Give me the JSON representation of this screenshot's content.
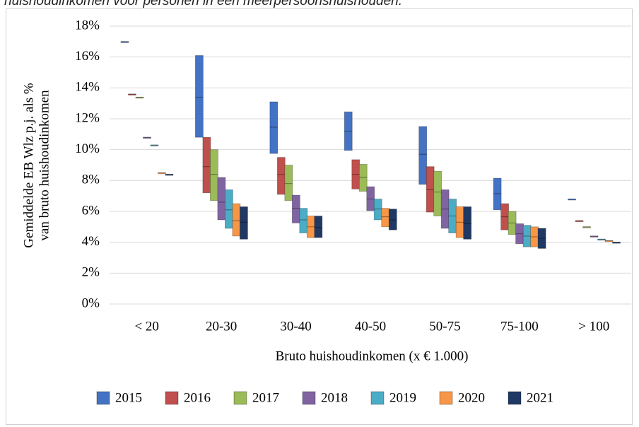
{
  "caption": "huishoudinkomen voor personen in een meerpersoonshuishouden.",
  "chart_data": {
    "type": "range",
    "ylabel": [
      "Gemiddelde EB Wlz p.j. als %",
      "van bruto huishoudinkomen"
    ],
    "xlabel": "Bruto huishoudinkomen (x € 1.000)",
    "categories": [
      "< 20",
      "20-30",
      "30-40",
      "40-50",
      "50-75",
      "75-100",
      "> 100"
    ],
    "ylim": [
      0,
      18
    ],
    "yticks": [
      {
        "value": 0,
        "label": "0%"
      },
      {
        "value": 2,
        "label": "2%"
      },
      {
        "value": 4,
        "label": "4%"
      },
      {
        "value": 6,
        "label": "6%"
      },
      {
        "value": 8,
        "label": "8%"
      },
      {
        "value": 10,
        "label": "10%"
      },
      {
        "value": 12,
        "label": "12%"
      },
      {
        "value": 14,
        "label": "14%"
      },
      {
        "value": 16,
        "label": "16%"
      },
      {
        "value": 18,
        "label": "18%"
      }
    ],
    "grid": true,
    "legend": "bottom",
    "series": [
      {
        "name": "2015",
        "color": "#4472c4",
        "low": [
          17.0,
          10.8,
          9.75,
          9.95,
          7.75,
          6.1,
          6.8
        ],
        "high": [
          17.0,
          16.1,
          13.1,
          12.45,
          11.5,
          8.15,
          6.8
        ],
        "values": [
          17.0,
          13.4,
          11.45,
          11.2,
          9.7,
          7.15,
          6.8
        ]
      },
      {
        "name": "2016",
        "color": "#c0504d",
        "low": [
          13.6,
          7.2,
          7.1,
          7.45,
          5.95,
          4.8,
          5.4
        ],
        "high": [
          13.6,
          10.8,
          9.5,
          9.35,
          8.9,
          6.5,
          5.4
        ],
        "values": [
          13.6,
          8.9,
          8.4,
          8.4,
          7.4,
          5.65,
          5.4
        ]
      },
      {
        "name": "2017",
        "color": "#9bbb59",
        "low": [
          13.4,
          6.7,
          6.7,
          7.3,
          5.7,
          4.5,
          5.0
        ],
        "high": [
          13.4,
          10.0,
          9.0,
          9.05,
          8.6,
          6.0,
          5.0
        ],
        "values": [
          13.4,
          8.4,
          7.8,
          8.2,
          7.25,
          5.25,
          5.0
        ]
      },
      {
        "name": "2018",
        "color": "#8064a2",
        "low": [
          10.8,
          5.45,
          5.25,
          6.05,
          4.9,
          3.9,
          4.4
        ],
        "high": [
          10.8,
          8.2,
          7.05,
          7.6,
          7.4,
          5.2,
          4.4
        ],
        "values": [
          10.8,
          6.6,
          6.2,
          6.8,
          6.15,
          4.55,
          4.4
        ]
      },
      {
        "name": "2019",
        "color": "#4bacc6",
        "low": [
          10.3,
          4.9,
          4.6,
          5.45,
          4.6,
          3.7,
          4.2
        ],
        "high": [
          10.3,
          7.4,
          6.2,
          6.8,
          6.8,
          5.1,
          4.2
        ],
        "values": [
          10.3,
          6.1,
          5.45,
          6.15,
          5.7,
          4.4,
          4.2
        ]
      },
      {
        "name": "2020",
        "color": "#f79646",
        "low": [
          8.5,
          4.4,
          4.3,
          5.0,
          4.3,
          3.7,
          4.1
        ],
        "high": [
          8.5,
          6.5,
          5.7,
          6.2,
          6.3,
          5.0,
          4.1
        ],
        "values": [
          8.5,
          5.4,
          5.0,
          5.65,
          5.3,
          4.35,
          4.1
        ]
      },
      {
        "name": "2021",
        "color": "#1f3864",
        "low": [
          8.4,
          4.2,
          4.3,
          4.8,
          4.2,
          3.6,
          4.0
        ],
        "high": [
          8.4,
          6.3,
          5.7,
          6.15,
          6.3,
          4.9,
          4.0
        ],
        "values": [
          8.4,
          5.3,
          4.95,
          5.45,
          5.2,
          4.25,
          4.0
        ]
      }
    ]
  }
}
